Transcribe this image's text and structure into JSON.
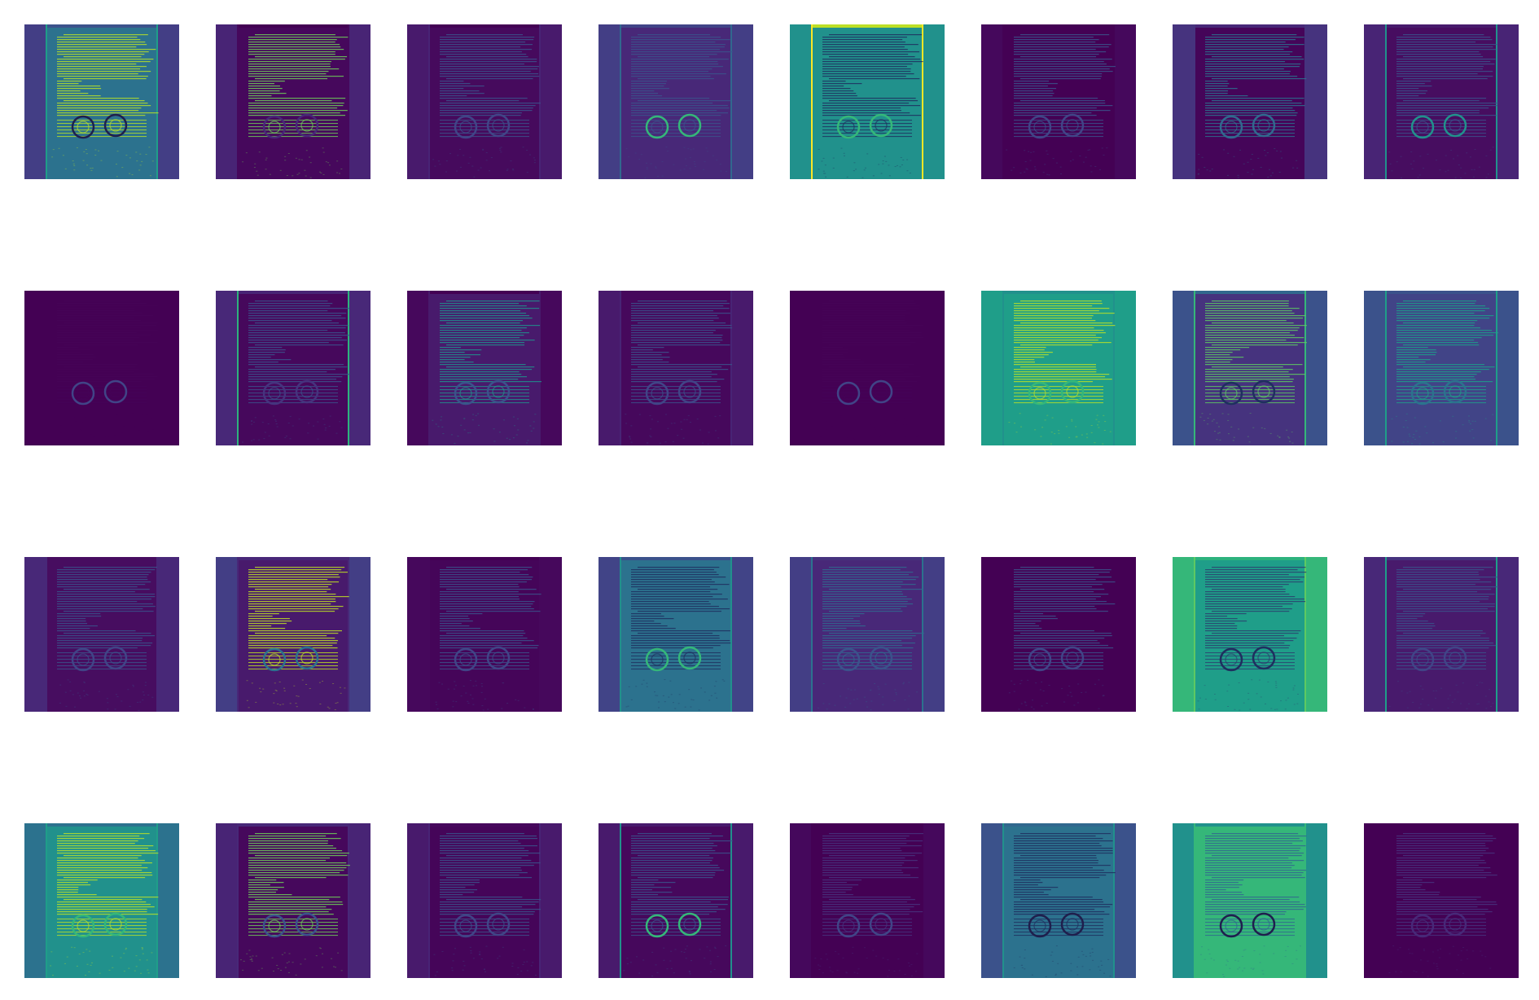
{
  "figure": {
    "rows": 4,
    "cols": 8,
    "colormap": "viridis",
    "tiles": [
      {
        "bg": "#3b528b",
        "page": "#2c728e",
        "side": "#433e85",
        "text": "#b5de2b",
        "seal": "#1f1f4d",
        "border": "#1f9e89"
      },
      {
        "bg": "#440154",
        "page": "#46085c",
        "side": "#482475",
        "text": "#6ece58",
        "seal": "#482878",
        "border": "#46085c"
      },
      {
        "bg": "#440154",
        "page": "#460a5d",
        "side": "#481a6c",
        "text": "#3b528b",
        "seal": "#414487",
        "border": "#482475"
      },
      {
        "bg": "#414487",
        "page": "#482878",
        "side": "#433e85",
        "text": "#3b528b",
        "seal": "#35b779",
        "border": "#31688e"
      },
      {
        "bg": "#bddf26",
        "page": "#21918c",
        "side": "#21918c",
        "text": "#1f2f5f",
        "seal": "#35b779",
        "border": "#fde725"
      },
      {
        "bg": "#440154",
        "page": "#440154",
        "side": "#45085c",
        "text": "#3b528b",
        "seal": "#414487",
        "border": "#440154"
      },
      {
        "bg": "#482878",
        "page": "#450559",
        "side": "#46337e",
        "text": "#2c728e",
        "seal": "#31688e",
        "border": "#46337e"
      },
      {
        "bg": "#481a6c",
        "page": "#470d60",
        "side": "#482475",
        "text": "#3b528b",
        "seal": "#21918c",
        "border": "#21918c"
      },
      {
        "bg": "#440154",
        "page": "#440154",
        "side": "#440154",
        "text": "#450357",
        "seal": "#414487",
        "border": "#440154"
      },
      {
        "bg": "#482475",
        "page": "#46085c",
        "side": "#482878",
        "text": "#3b528b",
        "seal": "#46337e",
        "border": "#2db27d"
      },
      {
        "bg": "#440154",
        "page": "#481a6c",
        "side": "#46085c",
        "text": "#21918c",
        "seal": "#3b528b",
        "border": "#481a6c"
      },
      {
        "bg": "#46085c",
        "page": "#46085c",
        "side": "#481a6c",
        "text": "#3b528b",
        "seal": "#414487",
        "border": "#482475"
      },
      {
        "bg": "#440154",
        "page": "#440154",
        "side": "#440154",
        "text": "#450357",
        "seal": "#414487",
        "border": "#440154"
      },
      {
        "bg": "#21918c",
        "page": "#1f9e89",
        "side": "#1f9e89",
        "text": "#b5de2b",
        "seal": "#35b779",
        "border": "#21918c"
      },
      {
        "bg": "#31688e",
        "page": "#46337e",
        "side": "#3b528b",
        "text": "#5ec962",
        "seal": "#1f2f5f",
        "border": "#35b779"
      },
      {
        "bg": "#3b528b",
        "page": "#414487",
        "side": "#3b528b",
        "text": "#1f9e89",
        "seal": "#2c728e",
        "border": "#1f9e89"
      },
      {
        "bg": "#470d60",
        "page": "#470d60",
        "side": "#482878",
        "text": "#3b528b",
        "seal": "#414487",
        "border": "#482878"
      },
      {
        "bg": "#482878",
        "page": "#481a6c",
        "side": "#433e85",
        "text": "#bddf26",
        "seal": "#2c728e",
        "border": "#482878"
      },
      {
        "bg": "#440154",
        "page": "#450559",
        "side": "#46085c",
        "text": "#3b528b",
        "seal": "#414487",
        "border": "#46085c"
      },
      {
        "bg": "#3b528b",
        "page": "#2c728e",
        "side": "#414487",
        "text": "#1f2f5f",
        "seal": "#35b779",
        "border": "#21918c"
      },
      {
        "bg": "#46337e",
        "page": "#482878",
        "side": "#433e85",
        "text": "#31688e",
        "seal": "#3b528b",
        "border": "#2c728e"
      },
      {
        "bg": "#440154",
        "page": "#440154",
        "side": "#440154",
        "text": "#3b528b",
        "seal": "#414487",
        "border": "#440154"
      },
      {
        "bg": "#2db27d",
        "page": "#1f9e89",
        "side": "#35b779",
        "text": "#2c3f6f",
        "seal": "#1f2f5f",
        "border": "#5ec962"
      },
      {
        "bg": "#46337e",
        "page": "#481a6c",
        "side": "#482878",
        "text": "#3b528b",
        "seal": "#414487",
        "border": "#1f9e89"
      },
      {
        "bg": "#2c728e",
        "page": "#21918c",
        "side": "#2c728e",
        "text": "#b5de2b",
        "seal": "#35b779",
        "border": "#1f9e89"
      },
      {
        "bg": "#482878",
        "page": "#46085c",
        "side": "#482475",
        "text": "#6ece58",
        "seal": "#3b528b",
        "border": "#482878"
      },
      {
        "bg": "#46085c",
        "page": "#450559",
        "side": "#481a6c",
        "text": "#3b528b",
        "seal": "#414487",
        "border": "#482475"
      },
      {
        "bg": "#481a6c",
        "page": "#46085c",
        "side": "#481a6c",
        "text": "#3b528b",
        "seal": "#35b779",
        "border": "#21918c"
      },
      {
        "bg": "#440154",
        "page": "#440154",
        "side": "#45085c",
        "text": "#46337e",
        "seal": "#414487",
        "border": "#440154"
      },
      {
        "bg": "#31688e",
        "page": "#2c728e",
        "side": "#3b528b",
        "text": "#1f2f5f",
        "seal": "#1f1f4d",
        "border": "#21918c"
      },
      {
        "bg": "#21918c",
        "page": "#35b779",
        "side": "#21918c",
        "text": "#31688e",
        "seal": "#1f1f4d",
        "border": "#35b779"
      },
      {
        "bg": "#440154",
        "page": "#440154",
        "side": "#440154",
        "text": "#46337e",
        "seal": "#482878",
        "border": "#440154"
      }
    ]
  }
}
